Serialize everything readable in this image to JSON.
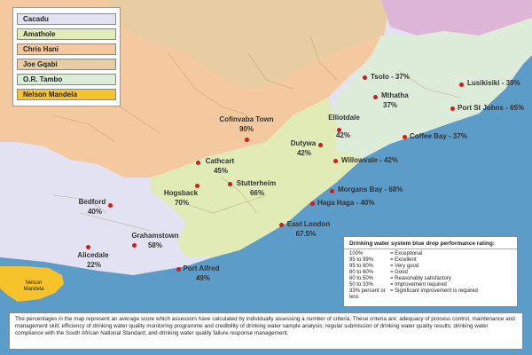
{
  "colors": {
    "sea": "#5b9cc9",
    "cacadu": "#e3e2f3",
    "amathole": "#e0ebb6",
    "chris_hani": "#f4c99f",
    "joe_gqabi": "#e8cda2",
    "or_tambo": "#dcecd9",
    "nelson_mandela": "#f7c32b",
    "outer_region": "#ddb5d7",
    "marker": "#d41a1a"
  },
  "legend": [
    {
      "label": "Cacadu",
      "color": "#e3e2f3"
    },
    {
      "label": "Amathole",
      "color": "#e0ebb6"
    },
    {
      "label": "Chris Hani",
      "color": "#f4c99f"
    },
    {
      "label": "Joe Gqabi",
      "color": "#e8cda2"
    },
    {
      "label": "O.R. Tambo",
      "color": "#dcecd9"
    },
    {
      "label": "Nelson Mandela",
      "color": "#f7c32b"
    }
  ],
  "places": {
    "tsolo": "Tsolo - 37%",
    "lusikisiki": "Lusikisiki - 39%",
    "mthatha_name": "Mthatha",
    "mthatha_value": "37%",
    "port_st_johns": "Port St Johns - 65%",
    "elliotdale_name": "Elliotdale",
    "elliotdale_value": "42%",
    "coffee_bay": "Coffee Bay - 37%",
    "cofimvaba_name": "Cofinvaba Town",
    "cofimvaba_value": "90%",
    "dutywa_name": "Dutywa",
    "dutywa_value": "42%",
    "willowvale": "Willowvale - 42%",
    "cathcart_name": "Cathcart",
    "cathcart_value": "45%",
    "hogsback_name": "Hogsback",
    "hogsback_value": "70%",
    "stutterheim_name": "Stutterheim",
    "stutterheim_value": "66%",
    "morgans_bay": "Morgans Bay - 68%",
    "haga_haga": "Haga Haga - 40%",
    "bedford_name": "Bedford",
    "bedford_value": "40%",
    "east_london_name": "East London",
    "east_london_value": "67.5%",
    "grahamstown_name": "Grahamstown",
    "grahamstown_value": "58%",
    "alicedale_name": "Alicedale",
    "alicedale_value": "22%",
    "port_alfred_name": "Port Alfred",
    "port_alfred_value": "49%",
    "nelson_mandela_line1": "Nelson",
    "nelson_mandela_line2": "Mandela"
  },
  "rating": {
    "title": "Drinking water system blue drop performance rating:",
    "rows": [
      {
        "range": "100%",
        "desc": "= Exceptional"
      },
      {
        "range": "95 to 99%",
        "desc": "= Excellent"
      },
      {
        "range": "95 to 80%",
        "desc": "= Very good"
      },
      {
        "range": "80 to 60%",
        "desc": "= Good"
      },
      {
        "range": "60 to 50%",
        "desc": "= Reasonably satisfactory"
      },
      {
        "range": "50 to 33%",
        "desc": "= Improvement required"
      },
      {
        "range": "33% percent or less",
        "desc": "= Significant improvement is required"
      }
    ]
  },
  "footnote": "The percentages in the map represent an average score which assessors have calculated by individually assessing a number of criteria. These criteria are: adequacy of process control, maintenance and management skill; efficiency of drinking water quality monitoring programme and credibility of drinking water sample analysis; regular submission of drinking water quality results; drinking water compliance with the South African National Standard; and drinking water quality failure response management."
}
